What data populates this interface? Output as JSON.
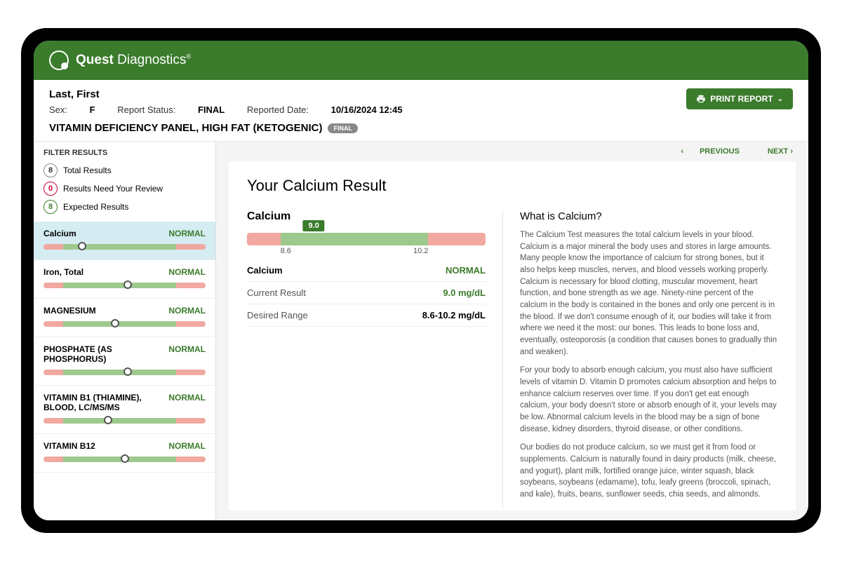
{
  "brand": {
    "bold": "Quest",
    "light": " Diagnostics",
    "accent": "#3b7b2c"
  },
  "patient": "Last, First",
  "meta": {
    "sex_label": "Sex:",
    "sex": "F",
    "status_label": "Report Status:",
    "status": "FINAL",
    "reported_label": "Reported Date:",
    "reported": "10/16/2024 12:45"
  },
  "panel": {
    "name": "VITAMIN DEFICIENCY PANEL, HIGH FAT (KETOGENIC)",
    "pill": "FINAL"
  },
  "print_label": "PRINT REPORT",
  "filter": {
    "heading": "FILTER RESULTS",
    "counts": [
      {
        "n": "8",
        "label": "Total Results",
        "cls": "c-total"
      },
      {
        "n": "0",
        "label": "Results Need Your Review",
        "cls": "c-review"
      },
      {
        "n": "8",
        "label": "Expected Results",
        "cls": "c-expected"
      }
    ]
  },
  "results": [
    {
      "name": "Calcium",
      "status": "NORMAL",
      "selected": true,
      "segments": [
        12,
        70,
        18
      ],
      "marker_pct": 24
    },
    {
      "name": "Iron, Total",
      "status": "NORMAL",
      "selected": false,
      "segments": [
        12,
        70,
        18
      ],
      "marker_pct": 52
    },
    {
      "name": "MAGNESIUM",
      "status": "NORMAL",
      "selected": false,
      "segments": [
        12,
        70,
        18
      ],
      "marker_pct": 44
    },
    {
      "name": "PHOSPHATE (AS PHOSPHORUS)",
      "status": "NORMAL",
      "selected": false,
      "segments": [
        12,
        70,
        18
      ],
      "marker_pct": 52
    },
    {
      "name": "VITAMIN B1 (THIAMINE), BLOOD, LC/MS/MS",
      "status": "NORMAL",
      "selected": false,
      "segments": [
        12,
        70,
        18
      ],
      "marker_pct": 40
    },
    {
      "name": "VITAMIN B12",
      "status": "NORMAL",
      "selected": false,
      "segments": [
        12,
        70,
        18
      ],
      "marker_pct": 50
    }
  ],
  "pager": {
    "prev": "PREVIOUS",
    "next": "NEXT"
  },
  "detail": {
    "title": "Your Calcium Result",
    "analyte": "Calcium",
    "value": "9.0",
    "range_low": "8.6",
    "range_high": "10.2",
    "big_segments": [
      14,
      62,
      24
    ],
    "big_marker_pct": 28,
    "rows": [
      {
        "k": "Calcium",
        "v": "NORMAL",
        "green": true,
        "hdr": true
      },
      {
        "k": "Current Result",
        "v": "9.0 mg/dL",
        "green": true
      },
      {
        "k": "Desired Range",
        "v": "8.6-10.2 mg/dL",
        "green": false
      }
    ],
    "info_heading": "What is Calcium?",
    "info_p": [
      "The Calcium Test measures the total calcium levels in your blood. Calcium is a major mineral the body uses and stores in large amounts. Many people know the importance of calcium for strong bones, but it also helps keep muscles, nerves, and blood vessels working properly. Calcium is necessary for blood clotting, muscular movement, heart function, and bone strength as we age. Ninety-nine percent of the calcium in the body is contained in the bones and only one percent is in the blood. If we don't consume enough of it, our bodies will take it from where we need it the most: our bones. This leads to bone loss and, eventually, osteoporosis (a condition that causes bones to gradually thin and weaken).",
      "For your body to absorb enough calcium, you must also have sufficient levels of vitamin D. Vitamin D promotes calcium absorption and helps to enhance calcium reserves over time. If you don't get eat enough calcium, your body doesn't store or absorb enough of it, your levels may be low. Abnormal calcium levels in the blood may be a sign of bone disease, kidney disorders, thyroid disease, or other conditions.",
      "Our bodies do not produce calcium, so we must get it from food or supplements. Calcium is naturally found in dairy products (milk, cheese, and yogurt), plant milk, fortified orange juice, winter squash, black soybeans, soybeans (edamame), tofu, leafy greens (broccoli, spinach, and kale), fruits, beans, sunflower seeds, chia seeds, and almonds."
    ]
  },
  "colors": {
    "red": "#f1a8a1",
    "green": "#9ec98c",
    "dark_green": "#3b7b2c"
  }
}
